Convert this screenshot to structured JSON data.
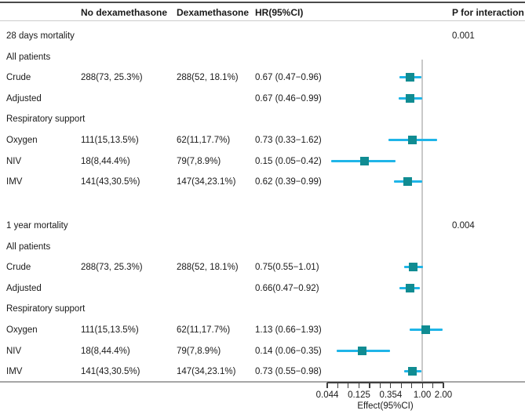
{
  "header": {
    "no_dex": "No dexamethasone",
    "dex": "Dexamethasone",
    "hr": "HR(95%CI)",
    "p": "P for interaction"
  },
  "colors": {
    "ci_line": "#1fb5e8",
    "marker": "#108c92",
    "reference_line": "#c9c9c9",
    "axis": "#3f3f3f",
    "text": "#1a1a1a"
  },
  "chart_data": {
    "type": "forest",
    "scale": "log",
    "columns": [
      "label",
      "No dexamethasone",
      "Dexamethasone",
      "HR(95%CI)",
      "P for interaction"
    ],
    "rows": [
      {
        "label": "28 days mortality",
        "p": "0.001"
      },
      {
        "label": "All patients"
      },
      {
        "label": "Crude",
        "no_dex": "288(73, 25.3%)",
        "dex": "288(52, 18.1%)",
        "hr_text": "0.67 (0.47−0.96)",
        "est": 0.67,
        "lo": 0.47,
        "hi": 0.96
      },
      {
        "label": "Adjusted",
        "hr_text": "0.67 (0.46−0.99)",
        "est": 0.67,
        "lo": 0.46,
        "hi": 0.99
      },
      {
        "label": "Respiratory support"
      },
      {
        "label": "Oxygen",
        "no_dex": "111(15,13.5%)",
        "dex": "62(11,17.7%)",
        "hr_text": "0.73 (0.33−1.62)",
        "est": 0.73,
        "lo": 0.33,
        "hi": 1.62
      },
      {
        "label": "NIV",
        "no_dex": "18(8,44.4%)",
        "dex": "79(7,8.9%)",
        "hr_text": "0.15 (0.05−0.42)",
        "est": 0.15,
        "lo": 0.05,
        "hi": 0.42
      },
      {
        "label": "IMV",
        "no_dex": "141(43,30.5%)",
        "dex": "147(34,23.1%)",
        "hr_text": "0.62 (0.39−0.99)",
        "est": 0.62,
        "lo": 0.39,
        "hi": 0.99
      },
      {
        "label": "1 year mortality",
        "p": "0.004",
        "section_break": true
      },
      {
        "label": "All patients"
      },
      {
        "label": "Crude",
        "no_dex": "288(73, 25.3%)",
        "dex": "288(52, 18.1%)",
        "hr_text": "0.75(0.55−1.01)",
        "est": 0.75,
        "lo": 0.55,
        "hi": 1.01
      },
      {
        "label": "Adjusted",
        "hr_text": "0.66(0.47−0.92)",
        "est": 0.66,
        "lo": 0.47,
        "hi": 0.92
      },
      {
        "label": "Respiratory support"
      },
      {
        "label": "Oxygen",
        "no_dex": "111(15,13.5%)",
        "dex": "62(11,17.7%)",
        "hr_text": "1.13 (0.66−1.93)",
        "est": 1.13,
        "lo": 0.66,
        "hi": 1.93
      },
      {
        "label": "NIV",
        "no_dex": "18(8,44.4%)",
        "dex": "79(7,8.9%)",
        "hr_text": "0.14 (0.06−0.35)",
        "est": 0.14,
        "lo": 0.06,
        "hi": 0.35
      },
      {
        "label": "IMV",
        "no_dex": "141(43,30.5%)",
        "dex": "147(34,23.1%)",
        "hr_text": "0.73 (0.55−0.98)",
        "est": 0.73,
        "lo": 0.55,
        "hi": 0.98
      }
    ],
    "x_axis": {
      "label": "Effect(95%CI)",
      "range": [
        0.044,
        2.0
      ],
      "ref_value": 1.0,
      "tick_values": [
        0.044,
        0.125,
        0.354,
        1.0,
        2.0
      ],
      "tick_labels": [
        "0.044",
        "0.125",
        "0.354",
        "1.00",
        "2.00"
      ],
      "minor_ticks": [
        0.044,
        0.0625,
        0.088,
        0.125,
        0.177,
        0.25,
        0.354,
        0.5,
        0.707,
        1.0,
        1.414,
        2.0
      ]
    }
  }
}
